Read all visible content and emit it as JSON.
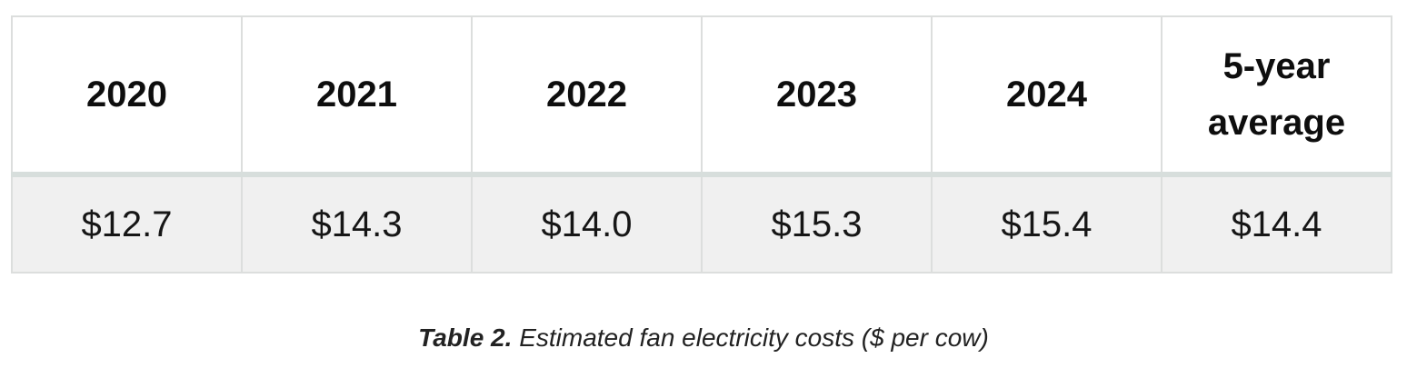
{
  "table": {
    "headers": [
      "2020",
      "2021",
      "2022",
      "2023",
      "2024",
      "5-year average"
    ],
    "rows": [
      [
        "$12.7",
        "$14.3",
        "$14.0",
        "$15.3",
        "$15.4",
        "$14.4"
      ]
    ]
  },
  "caption": {
    "label": "Table 2.",
    "text": "Estimated fan electricity costs ($ per cow)"
  }
}
